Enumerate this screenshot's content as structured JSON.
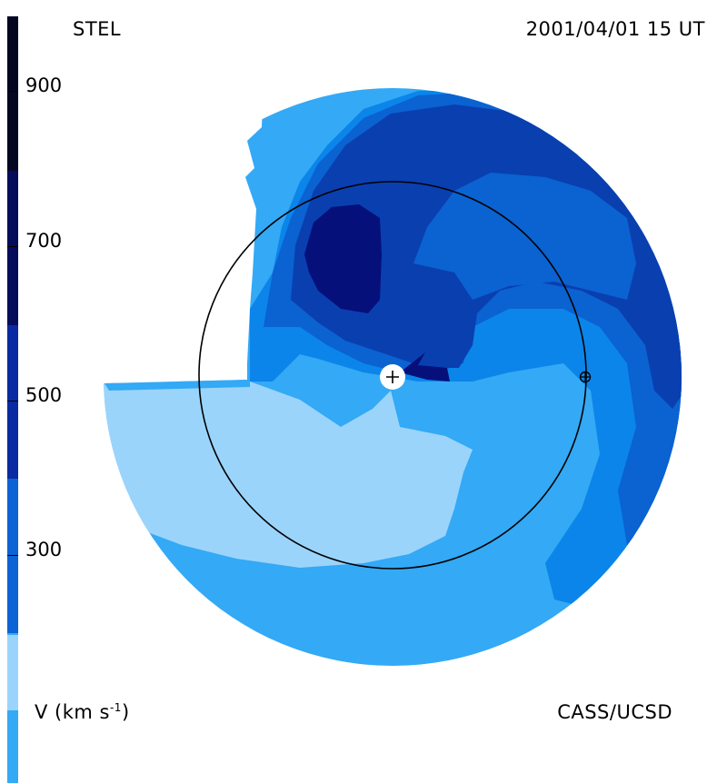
{
  "header": {
    "left": "STEL",
    "right": "2001/04/01 15 UT"
  },
  "footer": {
    "unit_prefix": "V (km s",
    "unit_sup": "-1",
    "unit_suffix": ")",
    "credit": "CASS/UCSD"
  },
  "colorbar": {
    "ticks": [
      "900",
      "700",
      "500",
      "300"
    ],
    "tick_values": [
      900,
      700,
      500,
      300
    ],
    "colors": [
      "#06092e",
      "#060f6e",
      "#0a1fa0",
      "#0a47c0",
      "#0a6fe0",
      "#7dc3f5"
    ]
  },
  "map": {
    "legend_colors": {
      "very_slow": "#9bd4fb",
      "slow": "#33aaf5",
      "medium": "#0b85ea",
      "fast": "#0b62d1",
      "faster": "#0a3fb0",
      "fastest": "#06107a"
    }
  }
}
